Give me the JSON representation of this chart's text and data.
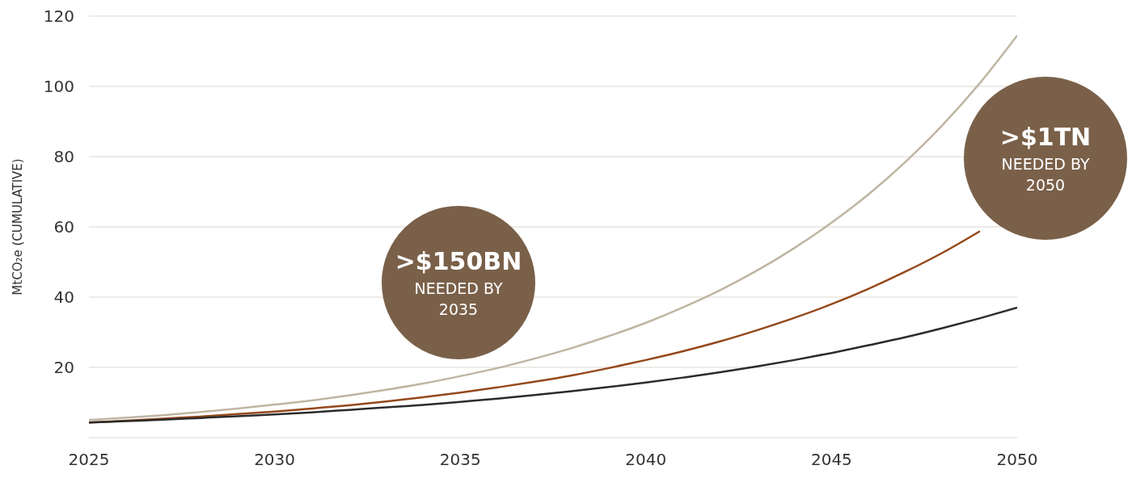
{
  "chart_data": {
    "type": "line",
    "ylabel": "MtCO₂e (CUMULATIVE)",
    "xlim": [
      2025,
      2050
    ],
    "xticks": [
      2025,
      2030,
      2035,
      2040,
      2045,
      2050
    ],
    "ylim": [
      0,
      120
    ],
    "yticks": [
      {
        "value": 0,
        "label": null
      },
      20,
      40,
      60,
      80,
      100,
      120
    ],
    "grid": "y",
    "legend": false,
    "marker": "none",
    "line_style": "solid",
    "series": [
      {
        "color": "#bfb5a3",
        "x": [
          2025,
          2026,
          2027,
          2028,
          2029,
          2030,
          2031,
          2032,
          2033,
          2034,
          2035,
          2036,
          2037,
          2038,
          2039,
          2040,
          2041,
          2042,
          2043,
          2044,
          2045,
          2046,
          2047,
          2048,
          2049,
          2050
        ],
        "values": [
          5.0,
          5.7,
          6.4,
          7.3,
          8.3,
          9.4,
          10.6,
          12.0,
          13.6,
          15.4,
          17.5,
          19.8,
          22.5,
          25.5,
          28.9,
          32.7,
          37.1,
          42.0,
          47.6,
          54.0,
          61.2,
          69.3,
          78.6,
          89.1,
          101,
          114.5
        ]
      },
      {
        "color": "#94481a",
        "x": [
          2025,
          2026,
          2027,
          2028,
          2029,
          2030,
          2031,
          2032,
          2033,
          2034,
          2035,
          2036,
          2037,
          2038,
          2039,
          2040,
          2041,
          2042,
          2043,
          2044,
          2045,
          2046,
          2047,
          2048,
          2049
        ],
        "values": [
          4.3,
          4.8,
          5.4,
          6.0,
          6.7,
          7.4,
          8.3,
          9.2,
          10.3,
          11.5,
          12.8,
          14.3,
          15.9,
          17.7,
          19.8,
          22.1,
          24.6,
          27.4,
          30.6,
          34.1,
          38.0,
          42.4,
          47.3,
          52.7,
          58.8
        ]
      },
      {
        "color": "#2b2b2b",
        "x": [
          2025,
          2026,
          2027,
          2028,
          2029,
          2030,
          2031,
          2032,
          2033,
          2034,
          2035,
          2036,
          2037,
          2038,
          2039,
          2040,
          2041,
          2042,
          2043,
          2044,
          2045,
          2046,
          2047,
          2048,
          2049,
          2050
        ],
        "values": [
          4.3,
          4.7,
          5.1,
          5.6,
          6.1,
          6.6,
          7.2,
          7.9,
          8.6,
          9.3,
          10.2,
          11.1,
          12.1,
          13.2,
          14.4,
          15.7,
          17.1,
          18.6,
          20.3,
          22.1,
          24.1,
          26.3,
          28.6,
          31.2,
          34.0,
          37.0
        ]
      }
    ],
    "annotations": [
      ">$150BN",
      "NEEDED BY 2035",
      ">$1TN",
      "NEEDED BY 2050"
    ]
  }
}
